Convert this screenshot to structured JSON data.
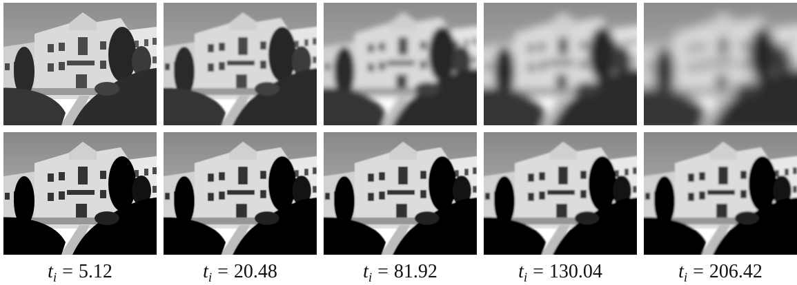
{
  "columns": [
    {
      "var": "t",
      "sub": "i",
      "op": "=",
      "value": "5.12"
    },
    {
      "var": "t",
      "sub": "i",
      "op": "=",
      "value": "20.48"
    },
    {
      "var": "t",
      "sub": "i",
      "op": "=",
      "value": "81.92"
    },
    {
      "var": "t",
      "sub": "i",
      "op": "=",
      "value": "130.04"
    },
    {
      "var": "t",
      "sub": "i",
      "op": "=",
      "value": "206.42"
    }
  ]
}
